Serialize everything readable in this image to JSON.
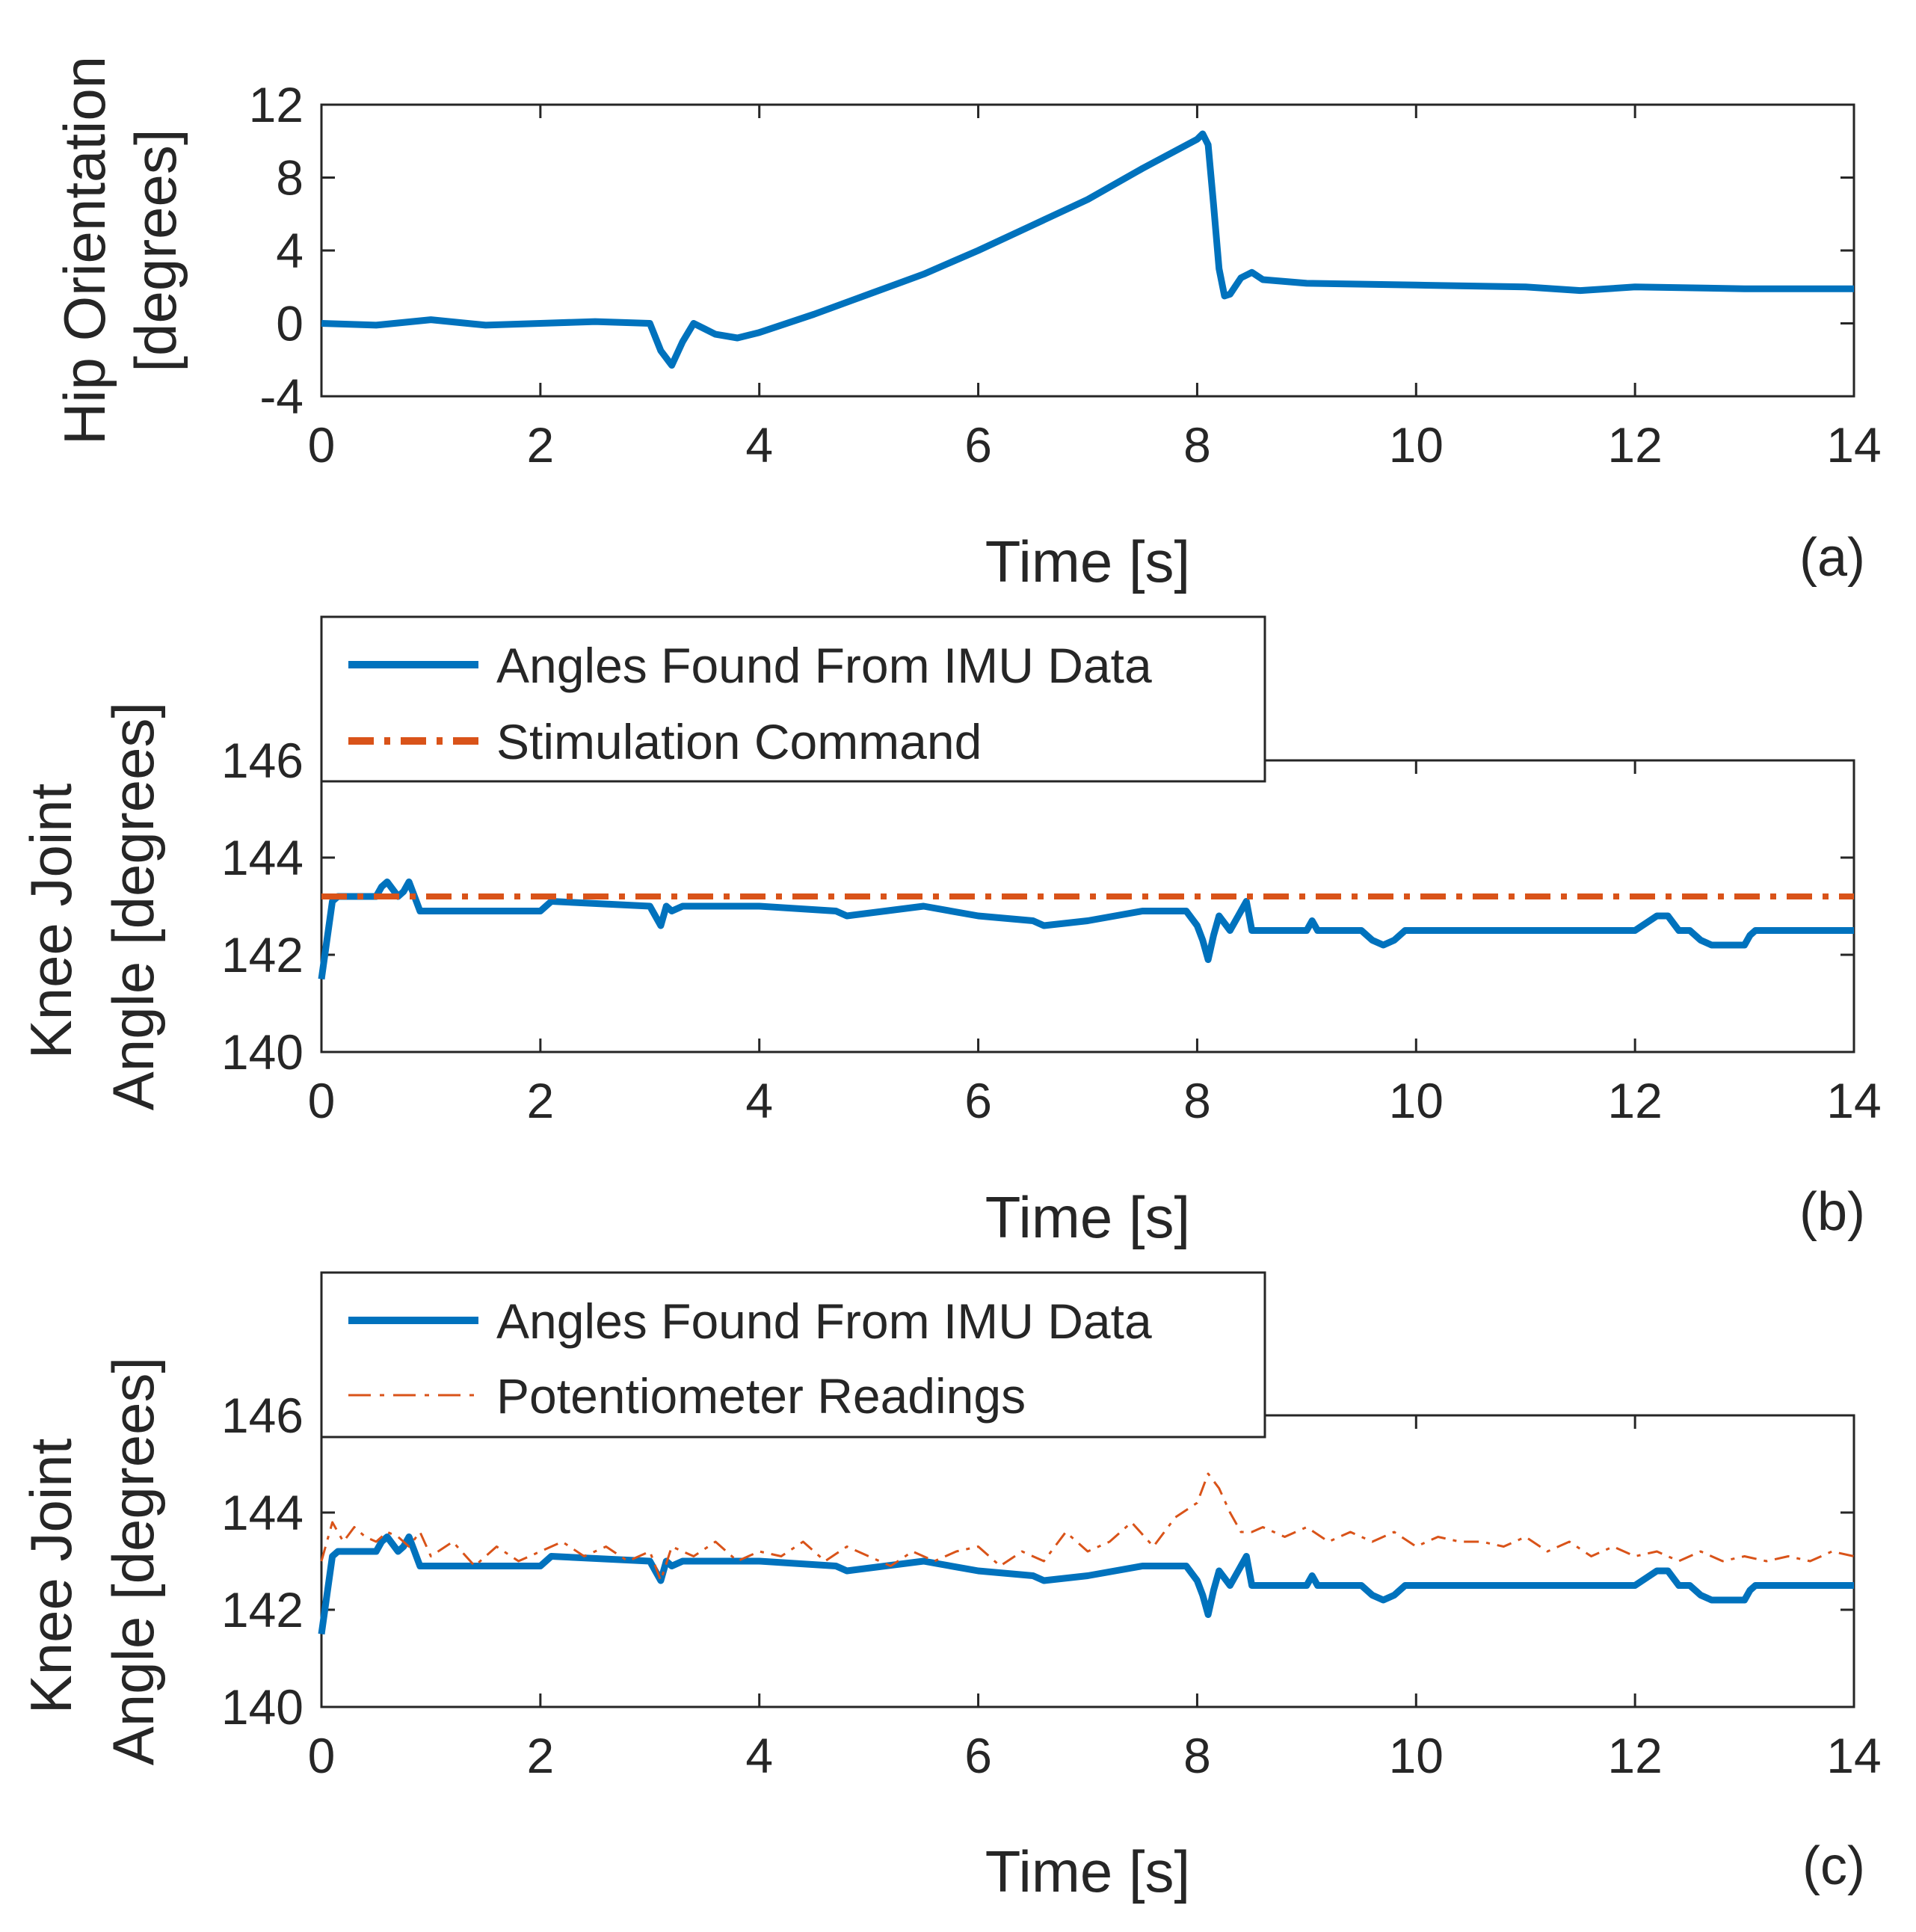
{
  "colors": {
    "imu": "#0072BD",
    "orange": "#D95319",
    "axis": "#262626"
  },
  "chart_data": [
    {
      "id": "a",
      "type": "line",
      "panel_label": "(a)",
      "xlabel": "Time [s]",
      "ylabel_lines": [
        "Hip Orientation",
        "[degrees]"
      ],
      "xlim": [
        0,
        14
      ],
      "ylim": [
        -4,
        12
      ],
      "xticks": [
        0,
        2,
        4,
        6,
        8,
        10,
        12,
        14
      ],
      "yticks": [
        -4,
        0,
        4,
        8,
        12
      ],
      "legend": null,
      "series": [
        {
          "name": "Hip Orientation",
          "style": "solid-thick",
          "color_key": "imu",
          "x": [
            0,
            0.5,
            1.0,
            1.5,
            2.0,
            2.5,
            3.0,
            3.1,
            3.2,
            3.3,
            3.4,
            3.5,
            3.6,
            3.8,
            4.0,
            4.5,
            5.0,
            5.5,
            6.0,
            6.5,
            7.0,
            7.5,
            8.0,
            8.05,
            8.1,
            8.15,
            8.2,
            8.25,
            8.3,
            8.4,
            8.5,
            8.6,
            9.0,
            10.0,
            11.0,
            11.5,
            12.0,
            13.0,
            14.0
          ],
          "y": [
            0,
            -0.1,
            0.2,
            -0.1,
            0,
            0.1,
            0,
            -1.5,
            -2.3,
            -1.0,
            0.0,
            -0.3,
            -0.6,
            -0.8,
            -0.5,
            0.5,
            1.6,
            2.7,
            4.0,
            5.4,
            6.8,
            8.5,
            10.1,
            10.4,
            9.8,
            6.5,
            3.0,
            1.5,
            1.6,
            2.5,
            2.8,
            2.4,
            2.2,
            2.1,
            2.0,
            1.8,
            2.0,
            1.9,
            1.9
          ]
        }
      ]
    },
    {
      "id": "b",
      "type": "line",
      "panel_label": "(b)",
      "xlabel": "Time [s]",
      "ylabel_lines": [
        "Knee Joint",
        "Angle [degrees]"
      ],
      "xlim": [
        0,
        14
      ],
      "ylim": [
        140,
        146
      ],
      "xticks": [
        0,
        2,
        4,
        6,
        8,
        10,
        12,
        14
      ],
      "yticks": [
        140,
        142,
        144,
        146
      ],
      "legend": {
        "placement": "top-left",
        "entries": [
          {
            "label": "Angles Found From IMU Data",
            "series_index": 0
          },
          {
            "label": "Stimulation Command",
            "series_index": 1
          }
        ]
      },
      "series": [
        {
          "name": "Angles Found From IMU Data",
          "style": "solid-thick",
          "color_key": "imu",
          "x": [
            0,
            0.05,
            0.1,
            0.15,
            0.2,
            0.3,
            0.5,
            0.55,
            0.6,
            0.7,
            0.75,
            0.8,
            0.85,
            0.9,
            1.5,
            2.0,
            2.1,
            3.0,
            3.1,
            3.15,
            3.2,
            3.3,
            4.0,
            4.7,
            4.8,
            5.5,
            6.0,
            6.5,
            6.6,
            7.0,
            7.5,
            7.9,
            8.0,
            8.05,
            8.1,
            8.15,
            8.2,
            8.3,
            8.4,
            8.45,
            8.5,
            9.0,
            9.05,
            9.1,
            9.5,
            9.6,
            9.7,
            9.8,
            9.9,
            10.0,
            11.0,
            12.0,
            12.2,
            12.3,
            12.4,
            12.5,
            12.6,
            12.7,
            13.0,
            13.05,
            13.1,
            14.0
          ],
          "y": [
            141.5,
            142.3,
            143.1,
            143.2,
            143.2,
            143.2,
            143.2,
            143.4,
            143.5,
            143.2,
            143.3,
            143.5,
            143.2,
            142.9,
            142.9,
            142.9,
            143.1,
            143.0,
            142.6,
            143.0,
            142.9,
            143.0,
            143.0,
            142.9,
            142.8,
            143.0,
            142.8,
            142.7,
            142.6,
            142.7,
            142.9,
            142.9,
            142.6,
            142.3,
            141.9,
            142.4,
            142.8,
            142.5,
            142.9,
            143.1,
            142.5,
            142.5,
            142.7,
            142.5,
            142.5,
            142.3,
            142.2,
            142.3,
            142.5,
            142.5,
            142.5,
            142.5,
            142.8,
            142.8,
            142.5,
            142.5,
            142.3,
            142.2,
            142.2,
            142.4,
            142.5,
            142.5
          ]
        },
        {
          "name": "Stimulation Command",
          "style": "dashdot-thick",
          "color_key": "orange",
          "x": [
            0,
            14
          ],
          "y": [
            143.2,
            143.2
          ]
        }
      ]
    },
    {
      "id": "c",
      "type": "line",
      "panel_label": "(c)",
      "xlabel": "Time [s]",
      "ylabel_lines": [
        "Knee Joint",
        "Angle [degrees]"
      ],
      "xlim": [
        0,
        14
      ],
      "ylim": [
        140,
        146
      ],
      "xticks": [
        0,
        2,
        4,
        6,
        8,
        10,
        12,
        14
      ],
      "yticks": [
        140,
        142,
        144,
        146
      ],
      "legend": {
        "placement": "top-left",
        "entries": [
          {
            "label": "Angles Found From IMU Data",
            "series_index": 0
          },
          {
            "label": "Potentiometer Readings",
            "series_index": 1
          }
        ]
      },
      "series": [
        {
          "name": "Angles Found From IMU Data",
          "style": "solid-thick",
          "color_key": "imu",
          "x": [
            0,
            0.05,
            0.1,
            0.15,
            0.2,
            0.3,
            0.5,
            0.55,
            0.6,
            0.7,
            0.75,
            0.8,
            0.85,
            0.9,
            1.5,
            2.0,
            2.1,
            3.0,
            3.1,
            3.15,
            3.2,
            3.3,
            4.0,
            4.7,
            4.8,
            5.5,
            6.0,
            6.5,
            6.6,
            7.0,
            7.5,
            7.9,
            8.0,
            8.05,
            8.1,
            8.15,
            8.2,
            8.3,
            8.4,
            8.45,
            8.5,
            9.0,
            9.05,
            9.1,
            9.5,
            9.6,
            9.7,
            9.8,
            9.9,
            10.0,
            11.0,
            12.0,
            12.2,
            12.3,
            12.4,
            12.5,
            12.6,
            12.7,
            13.0,
            13.05,
            13.1,
            14.0
          ],
          "y": [
            141.5,
            142.3,
            143.1,
            143.2,
            143.2,
            143.2,
            143.2,
            143.4,
            143.5,
            143.2,
            143.3,
            143.5,
            143.2,
            142.9,
            142.9,
            142.9,
            143.1,
            143.0,
            142.6,
            143.0,
            142.9,
            143.0,
            143.0,
            142.9,
            142.8,
            143.0,
            142.8,
            142.7,
            142.6,
            142.7,
            142.9,
            142.9,
            142.6,
            142.3,
            141.9,
            142.4,
            142.8,
            142.5,
            142.9,
            143.1,
            142.5,
            142.5,
            142.7,
            142.5,
            142.5,
            142.3,
            142.2,
            142.3,
            142.5,
            142.5,
            142.5,
            142.5,
            142.8,
            142.8,
            142.5,
            142.5,
            142.3,
            142.2,
            142.2,
            142.4,
            142.5,
            142.5
          ]
        },
        {
          "name": "Potentiometer Readings",
          "style": "dashdot-thin",
          "color_key": "orange",
          "x": [
            0,
            0.1,
            0.2,
            0.3,
            0.4,
            0.5,
            0.6,
            0.7,
            0.8,
            0.9,
            1.0,
            1.2,
            1.4,
            1.6,
            1.8,
            2.0,
            2.2,
            2.4,
            2.6,
            2.8,
            3.0,
            3.1,
            3.2,
            3.4,
            3.6,
            3.8,
            4.0,
            4.2,
            4.4,
            4.6,
            4.8,
            5.0,
            5.2,
            5.4,
            5.6,
            5.8,
            6.0,
            6.2,
            6.4,
            6.6,
            6.8,
            7.0,
            7.2,
            7.4,
            7.6,
            7.8,
            8.0,
            8.1,
            8.2,
            8.3,
            8.4,
            8.5,
            8.6,
            8.8,
            9.0,
            9.2,
            9.4,
            9.6,
            9.8,
            10.0,
            10.2,
            10.4,
            10.6,
            10.8,
            11.0,
            11.2,
            11.4,
            11.6,
            11.8,
            12.0,
            12.2,
            12.4,
            12.6,
            12.8,
            13.0,
            13.2,
            13.4,
            13.6,
            13.8,
            14.0
          ],
          "y": [
            143.0,
            143.8,
            143.4,
            143.7,
            143.5,
            143.4,
            143.6,
            143.5,
            143.3,
            143.6,
            143.1,
            143.4,
            142.9,
            143.3,
            143.0,
            143.2,
            143.4,
            143.1,
            143.3,
            143.0,
            143.2,
            142.6,
            143.3,
            143.1,
            143.4,
            143.0,
            143.2,
            143.1,
            143.4,
            143.0,
            143.3,
            143.1,
            142.9,
            143.2,
            143.0,
            143.2,
            143.3,
            142.9,
            143.2,
            143.0,
            143.6,
            143.2,
            143.4,
            143.8,
            143.3,
            143.9,
            144.2,
            144.8,
            144.5,
            144.0,
            143.6,
            143.6,
            143.7,
            143.5,
            143.7,
            143.4,
            143.6,
            143.4,
            143.6,
            143.3,
            143.5,
            143.4,
            143.4,
            143.3,
            143.5,
            143.2,
            143.4,
            143.1,
            143.3,
            143.1,
            143.2,
            143.0,
            143.2,
            143.0,
            143.1,
            143.0,
            143.1,
            143.0,
            143.2,
            143.1
          ]
        }
      ]
    }
  ]
}
